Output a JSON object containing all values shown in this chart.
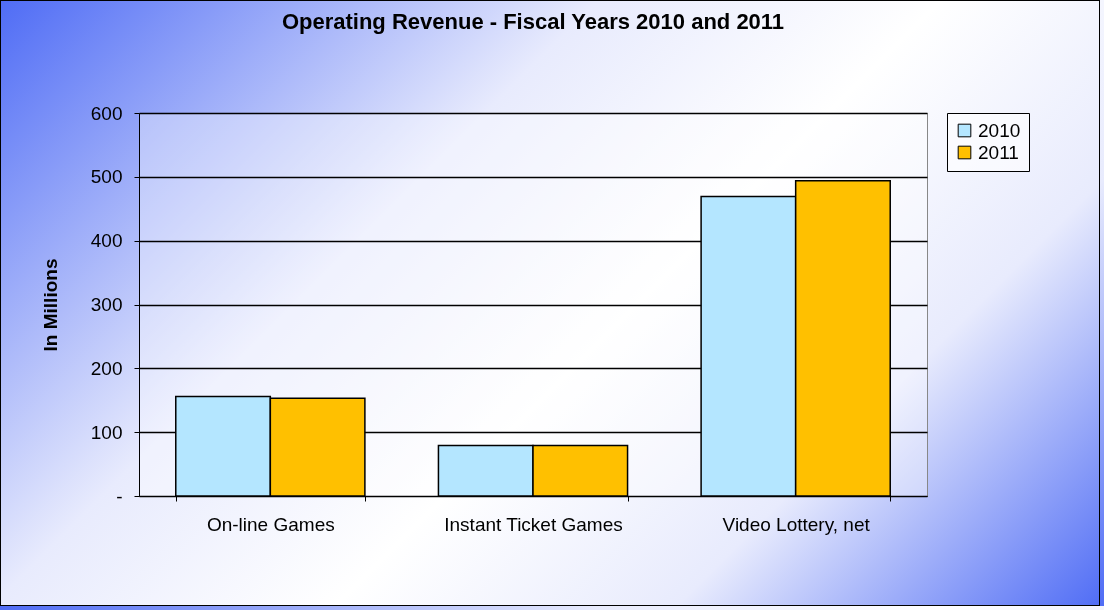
{
  "chart_data": {
    "type": "bar",
    "title": "Operating Revenue - Fiscal Years 2010 and 2011",
    "ylabel": "In Millions",
    "categories": [
      "On-line Games",
      "Instant Ticket Games",
      "Video Lottery, net"
    ],
    "series": [
      {
        "name": "2010",
        "color": "#b4e6ff",
        "values": [
          156,
          79,
          469
        ]
      },
      {
        "name": "2011",
        "color": "#ffc000",
        "values": [
          153,
          79,
          494
        ]
      }
    ],
    "ylim": [
      0,
      600
    ],
    "yticks": [
      {
        "value": 0,
        "label": "-"
      },
      100,
      200,
      300,
      400,
      500,
      600
    ],
    "grid": "y",
    "legend": "right"
  }
}
